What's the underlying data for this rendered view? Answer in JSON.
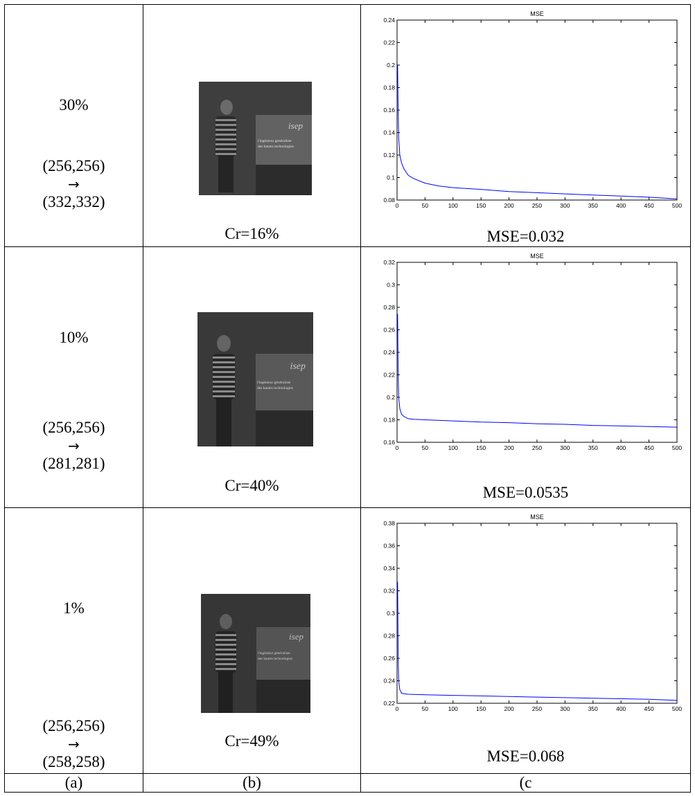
{
  "rows": [
    {
      "percent": "30%",
      "dims_from": "(256,256)",
      "arrow": "→",
      "dims_to": "(332,332)",
      "cr": "Cr=16%",
      "mse_label": "MSE=0.032",
      "thumb_text": [
        "l'ingénieur généraliste",
        "des hautes technologies"
      ],
      "thumb_logo": "isep"
    },
    {
      "percent": "10%",
      "dims_from": "(256,256)",
      "arrow": "→",
      "dims_to": "(281,281)",
      "cr": "Cr=40%",
      "mse_label": "MSE=0.0535",
      "thumb_text": [
        "l'ingénieur généraliste",
        "des hautes technologies"
      ],
      "thumb_logo": "isep"
    },
    {
      "percent": "1%",
      "dims_from": "(256,256)",
      "arrow": "→",
      "dims_to": "(258,258)",
      "cr": "Cr=49%",
      "mse_label": "MSE=0.068",
      "thumb_text": [
        "l'ingénieur généraliste",
        "des hautes technologies"
      ],
      "thumb_logo": "isep"
    }
  ],
  "captions": [
    "(a)",
    "(b)",
    "(c"
  ],
  "chart_data": [
    {
      "type": "line",
      "title": "MSE",
      "xlabel": "",
      "ylabel": "",
      "xlim": [
        0,
        500
      ],
      "ylim": [
        0.08,
        0.24
      ],
      "xticks": [
        0,
        50,
        100,
        150,
        200,
        250,
        300,
        350,
        400,
        450,
        500
      ],
      "yticks": [
        "0.08",
        "0.1",
        "0.12",
        "0.14",
        "0.16",
        "0.18",
        "0.2",
        "0.22",
        "0.24"
      ],
      "grid": false,
      "line_color": "#0000ff",
      "x": [
        1,
        2,
        3,
        5,
        8,
        12,
        20,
        30,
        50,
        75,
        100,
        150,
        200,
        250,
        300,
        350,
        400,
        450,
        500
      ],
      "y": [
        0.2,
        0.16,
        0.135,
        0.12,
        0.113,
        0.108,
        0.102,
        0.099,
        0.095,
        0.0925,
        0.091,
        0.0895,
        0.0875,
        0.0865,
        0.0855,
        0.0845,
        0.0835,
        0.0825,
        0.081
      ]
    },
    {
      "type": "line",
      "title": "MSE",
      "xlabel": "",
      "ylabel": "",
      "xlim": [
        0,
        500
      ],
      "ylim": [
        0.16,
        0.32
      ],
      "xticks": [
        0,
        50,
        100,
        150,
        200,
        250,
        300,
        350,
        400,
        450,
        500
      ],
      "yticks": [
        "0.16",
        "0.18",
        "0.2",
        "0.22",
        "0.24",
        "0.26",
        "0.28",
        "0.3",
        "0.32"
      ],
      "grid": false,
      "line_color": "#0000ff",
      "x": [
        1,
        2,
        3,
        5,
        8,
        12,
        20,
        30,
        50,
        100,
        150,
        200,
        250,
        300,
        350,
        400,
        450,
        500
      ],
      "y": [
        0.274,
        0.22,
        0.2,
        0.19,
        0.185,
        0.183,
        0.181,
        0.1805,
        0.18,
        0.179,
        0.178,
        0.1775,
        0.1765,
        0.176,
        0.175,
        0.1745,
        0.174,
        0.1735
      ]
    },
    {
      "type": "line",
      "title": "MSE",
      "xlabel": "",
      "ylabel": "",
      "xlim": [
        0,
        500
      ],
      "ylim": [
        0.22,
        0.38
      ],
      "xticks": [
        0,
        50,
        100,
        150,
        200,
        250,
        300,
        350,
        400,
        450,
        500
      ],
      "yticks": [
        "0.22",
        "0.24",
        "0.26",
        "0.28",
        "0.3",
        "0.32",
        "0.34",
        "0.36",
        "0.38"
      ],
      "grid": false,
      "line_color": "#0000ff",
      "x": [
        1,
        2,
        3,
        5,
        8,
        12,
        20,
        50,
        100,
        150,
        200,
        250,
        300,
        350,
        400,
        450,
        500
      ],
      "y": [
        0.328,
        0.26,
        0.24,
        0.232,
        0.229,
        0.2285,
        0.228,
        0.2275,
        0.227,
        0.2265,
        0.226,
        0.2255,
        0.225,
        0.2245,
        0.224,
        0.2235,
        0.2225
      ]
    }
  ]
}
